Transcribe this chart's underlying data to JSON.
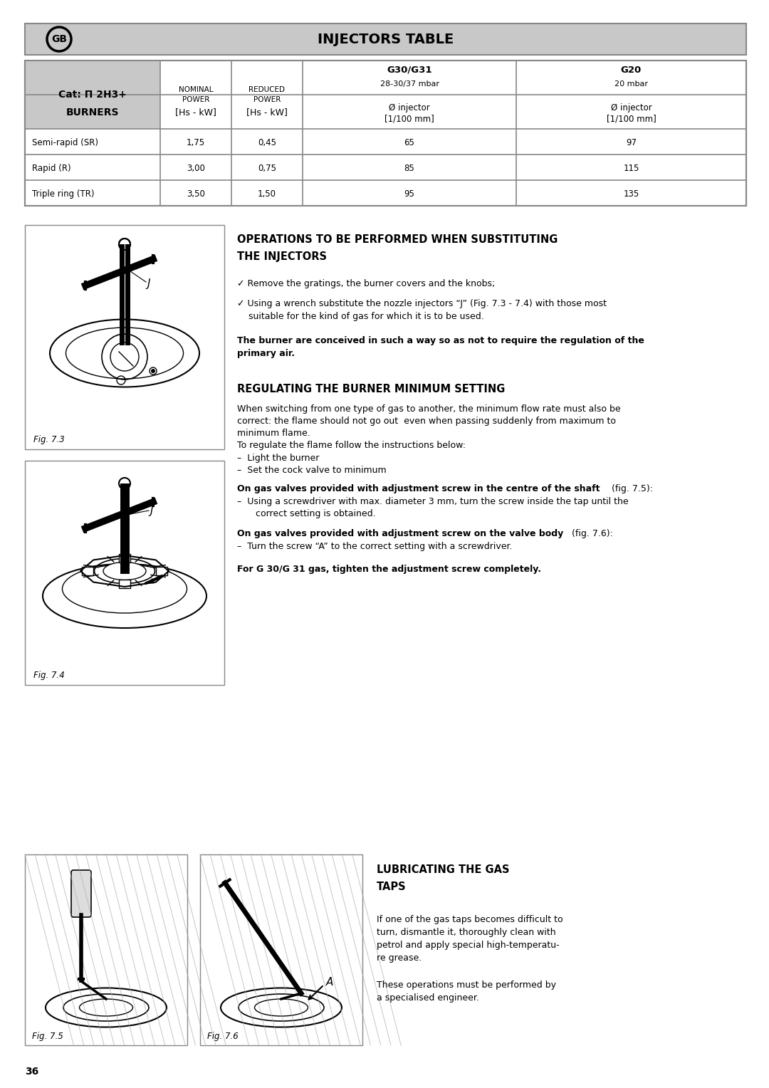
{
  "page_bg": "#ffffff",
  "header_title": "INJECTORS TABLE",
  "header_bg": "#c8c8c8",
  "border": "#888888",
  "col_cat": "Cat: Π 2H3+",
  "col_g3031_title": "G30/G31",
  "col_g3031_sub": "28-30/37 mbar",
  "col_g20_title": "G20",
  "col_g20_sub": "20 mbar",
  "col_burners": "BURNERS",
  "col_hs1": "[Hs - kW]",
  "col_hs2": "[Hs - kW]",
  "rows": [
    {
      "name": "Semi-rapid (SR)",
      "nominal": "1,75",
      "reduced": "0,45",
      "g3031": "65",
      "g20": "97"
    },
    {
      "name": "Rapid (R)",
      "nominal": "3,00",
      "reduced": "0,75",
      "g3031": "85",
      "g20": "115"
    },
    {
      "name": "Triple ring (TR)",
      "nominal": "3,50",
      "reduced": "1,50",
      "g3031": "95",
      "g20": "135"
    }
  ],
  "s1_title1": "OPERATIONS TO BE PERFORMED WHEN SUBSTITUTING",
  "s1_title2": "THE INJECTORS",
  "s1_b1": "Remove the gratings, the burner covers and the knobs;",
  "s1_b2a": "Using a wrench substitute the nozzle injectors “J” (Fig. 7.3 - 7.4) with those most",
  "s1_b2b": "suitable for the kind of gas for which it is to be used.",
  "s1_bold1": "The burner are conceived in such a way so as not to require the regulation of the",
  "s1_bold2": "primary air.",
  "fig73": "Fig. 7.3",
  "fig74": "Fig. 7.4",
  "s2_title": "REGULATING THE BURNER MINIMUM SETTING",
  "s2_p1a": "When switching from one type of gas to another, the minimum flow rate must also be",
  "s2_p1b": "correct: the flame should not go out  even when passing suddenly from maximum to",
  "s2_p1c": "minimum flame.",
  "s2_p2": "To regulate the flame follow the instructions below:",
  "s2_l1": "–  Light the burner",
  "s2_l2": "–  Set the cock valve to minimum",
  "s2_bold1a": "On gas valves provided with adjustment screw in the centre of the shaft",
  "s2_bold1b": "  (fig. 7.5):",
  "s2_p3a": "–  Using a screwdriver with max. diameter 3 mm, turn the screw inside the tap until the",
  "s2_p3b": "   correct setting is obtained.",
  "s2_bold2a": "On gas valves provided with adjustment screw on the valve body",
  "s2_bold2b": " (fig. 7.6):",
  "s2_p4": "–  Turn the screw “A” to the correct setting with a screwdriver.",
  "s2_bold3": "For G 30/G 31 gas, tighten the adjustment screw completely.",
  "s3_title1": "LUBRICATING THE GAS",
  "s3_title2": "TAPS",
  "s3_p1a": "If one of the gas taps becomes difficult to",
  "s3_p1b": "turn, dismantle it, thoroughly clean with",
  "s3_p1c": "petrol and apply special high-temperatu-",
  "s3_p1d": "re grease.",
  "s3_p2a": "These operations must be performed by",
  "s3_p2b": "a specialised engineer.",
  "fig75": "Fig. 7.5",
  "fig76": "Fig. 7.6",
  "page_num": "36"
}
